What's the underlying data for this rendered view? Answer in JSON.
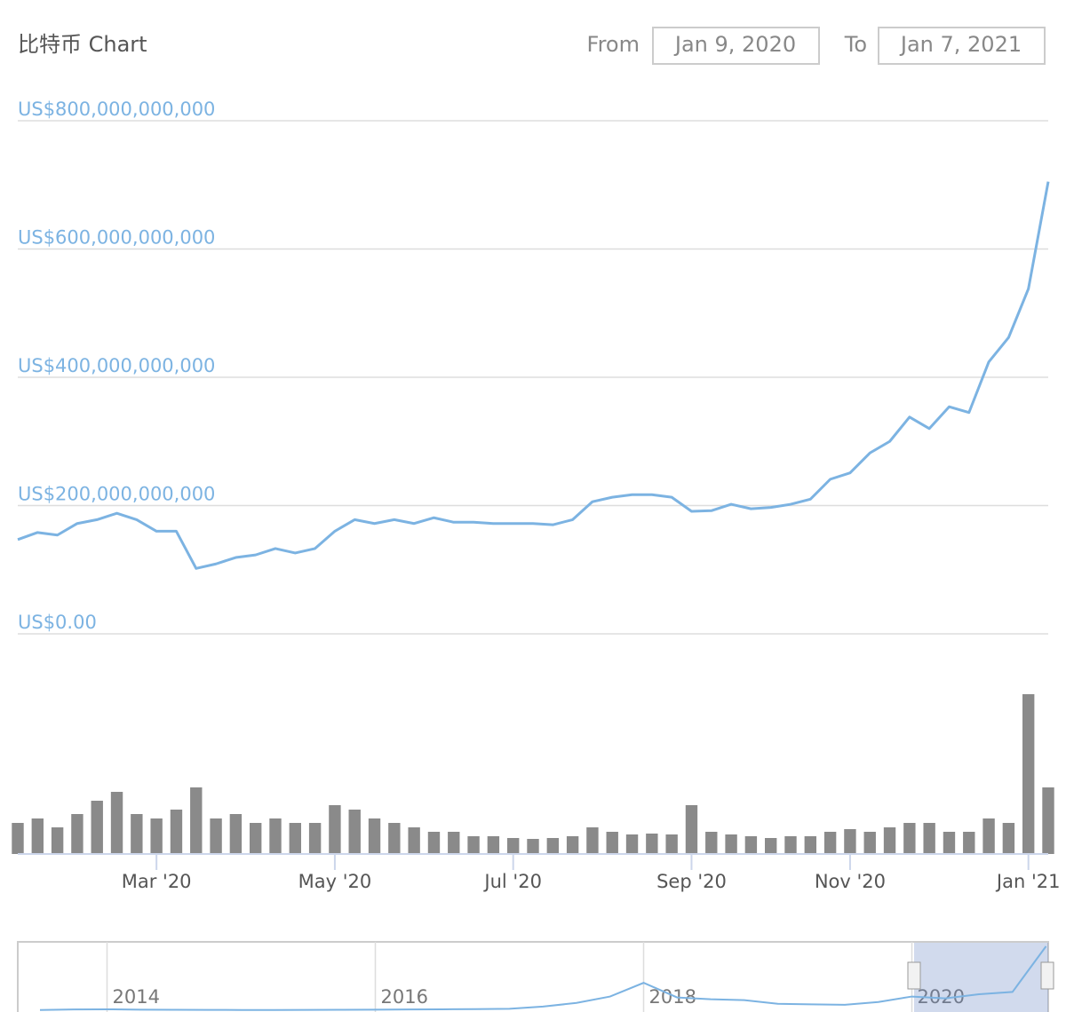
{
  "chart_data": {
    "type": "line",
    "title": "比特币 Chart",
    "from_label": "From",
    "from_value": "Jan 9, 2020",
    "to_label": "To",
    "to_value": "Jan 7, 2021",
    "color": "#7cb3e2",
    "volume_color": "#8a8a8a",
    "grid": true,
    "categories": [
      null,
      null,
      null,
      null,
      null,
      null,
      null,
      "Mar '20",
      null,
      null,
      null,
      null,
      null,
      null,
      null,
      null,
      "May '20",
      null,
      null,
      null,
      null,
      null,
      null,
      null,
      null,
      "Jul '20",
      null,
      null,
      null,
      null,
      null,
      null,
      null,
      null,
      "Sep '20",
      null,
      null,
      null,
      null,
      null,
      null,
      null,
      "Nov '20",
      null,
      null,
      null,
      null,
      null,
      null,
      null,
      null,
      "Jan '21",
      null
    ],
    "values": [
      147000000000,
      158000000000,
      154000000000,
      172000000000,
      178000000000,
      188000000000,
      178000000000,
      160000000000,
      160000000000,
      102000000000,
      109000000000,
      119000000000,
      123000000000,
      133000000000,
      126000000000,
      133000000000,
      160000000000,
      178000000000,
      172000000000,
      178000000000,
      172000000000,
      181000000000,
      174000000000,
      174000000000,
      172000000000,
      172000000000,
      172000000000,
      170000000000,
      178000000000,
      206000000000,
      213000000000,
      217000000000,
      217000000000,
      213000000000,
      191000000000,
      192000000000,
      202000000000,
      195000000000,
      197000000000,
      202000000000,
      210000000000,
      241000000000,
      251000000000,
      282000000000,
      300000000000,
      338000000000,
      320000000000,
      354000000000,
      345000000000,
      424000000000,
      462000000000,
      538000000000,
      705000000000
    ],
    "volumes": [
      35000000000,
      40000000000,
      30000000000,
      45000000000,
      60000000000,
      70000000000,
      45000000000,
      40000000000,
      50000000000,
      75000000000,
      40000000000,
      45000000000,
      35000000000,
      40000000000,
      35000000000,
      35000000000,
      55000000000,
      50000000000,
      40000000000,
      35000000000,
      30000000000,
      25000000000,
      25000000000,
      20000000000,
      20000000000,
      18000000000,
      17000000000,
      18000000000,
      20000000000,
      30000000000,
      25000000000,
      22000000000,
      23000000000,
      22000000000,
      55000000000,
      25000000000,
      22000000000,
      20000000000,
      18000000000,
      20000000000,
      20000000000,
      25000000000,
      28000000000,
      25000000000,
      30000000000,
      35000000000,
      35000000000,
      25000000000,
      25000000000,
      40000000000,
      35000000000,
      180000000000,
      75000000000
    ],
    "ylim": [
      0,
      800000000000
    ],
    "yticks": [
      {
        "value": 0,
        "label": "US$0.00"
      },
      {
        "value": 200000000000,
        "label": "US$200,000,000,000"
      },
      {
        "value": 400000000000,
        "label": "US$400,000,000,000"
      },
      {
        "value": 600000000000,
        "label": "US$600,000,000,000"
      },
      {
        "value": 800000000000,
        "label": "US$800,000,000,000"
      }
    ],
    "y2lim": [
      0,
      200000000000
    ],
    "navigator": {
      "categories": [
        null,
        null,
        "2014",
        null,
        null,
        null,
        null,
        null,
        null,
        null,
        "2016",
        null,
        null,
        null,
        null,
        null,
        null,
        null,
        "2018",
        null,
        null,
        null,
        null,
        null,
        null,
        null,
        "2020",
        null,
        null,
        null,
        null
      ],
      "values": [
        2000000000,
        8000000000,
        10000000000,
        6000000000,
        5000000000,
        4000000000,
        3000000000,
        3000000000,
        4000000000,
        5000000000,
        6000000000,
        8000000000,
        10000000000,
        12000000000,
        16000000000,
        40000000000,
        80000000000,
        150000000000,
        300000000000,
        140000000000,
        120000000000,
        110000000000,
        70000000000,
        65000000000,
        60000000000,
        90000000000,
        150000000000,
        130000000000,
        175000000000,
        200000000000,
        700000000000
      ],
      "ylim": [
        0,
        700000000000
      ]
    }
  }
}
